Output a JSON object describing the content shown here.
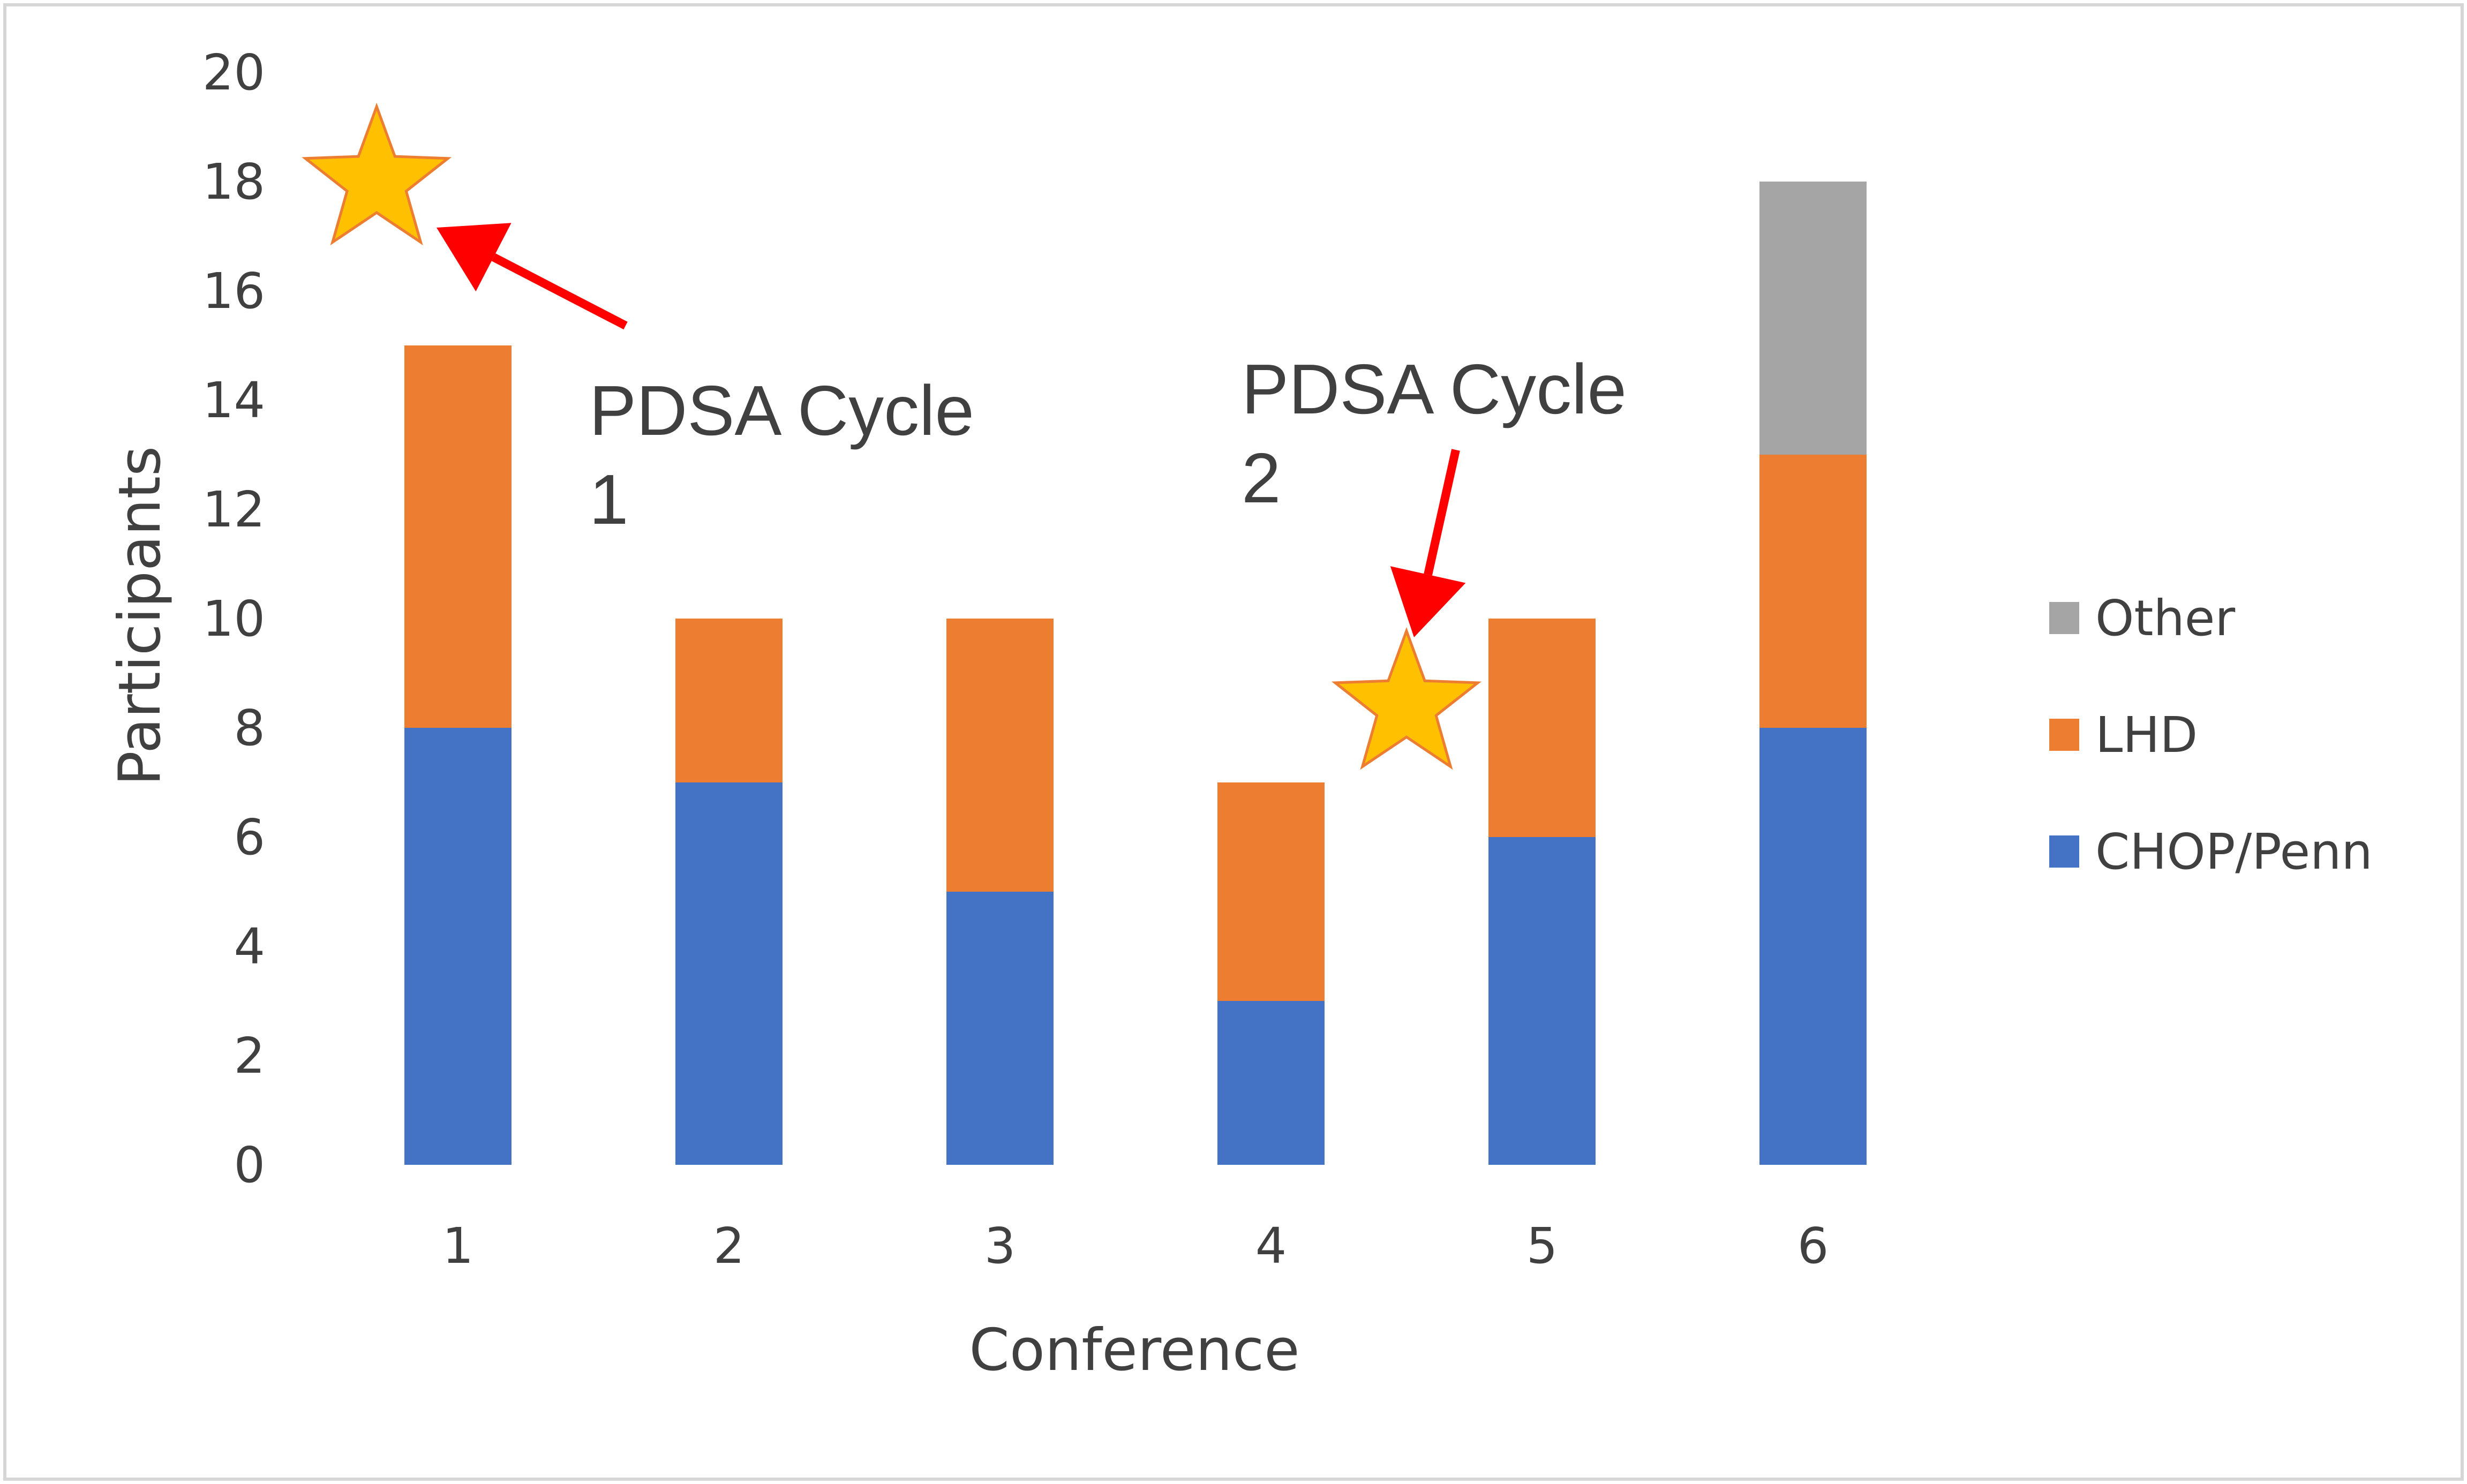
{
  "chart_data": {
    "type": "bar",
    "stacked": true,
    "xlabel": "Conference",
    "ylabel": "Participants",
    "categories": [
      "1",
      "2",
      "3",
      "4",
      "5",
      "6"
    ],
    "ylim": [
      0,
      20
    ],
    "yticks": [
      "0",
      "2",
      "4",
      "6",
      "8",
      "10",
      "12",
      "14",
      "16",
      "18",
      "20"
    ],
    "grid": false,
    "legend_position": "right",
    "series": [
      {
        "name": "CHOP/Penn",
        "color": "#4472c4",
        "values": [
          8,
          7,
          5,
          3,
          6,
          8
        ]
      },
      {
        "name": "LHD",
        "color": "#ed7d31",
        "values": [
          7,
          3,
          5,
          4,
          4,
          5
        ]
      },
      {
        "name": "Other",
        "color": "#a5a5a5",
        "values": [
          0,
          0,
          0,
          0,
          0,
          5
        ]
      }
    ],
    "legend_order": [
      "Other",
      "LHD",
      "CHOP/Penn"
    ],
    "annotations": [
      {
        "text_line1": "PDSA Cycle",
        "text_line2": "1",
        "star_at_conference": 0.7,
        "star_at_value": 18,
        "marker": "star-icon",
        "arrow": "red-arrow"
      },
      {
        "text_line1": "PDSA Cycle",
        "text_line2": "2",
        "star_at_conference": 4.5,
        "star_at_value": 8.4,
        "marker": "star-icon",
        "arrow": "red-arrow"
      }
    ],
    "star_color": "#ffc000",
    "star_outline": "#ed7d31",
    "arrow_color": "#ff0000"
  }
}
